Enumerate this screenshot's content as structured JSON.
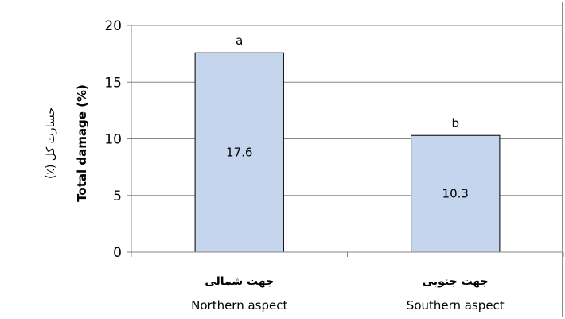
{
  "chart_data": {
    "type": "bar",
    "categories": [
      "Northern aspect",
      "Southern aspect"
    ],
    "categories_fa": [
      "جهت شمالی",
      "جهت جنوبی"
    ],
    "values": [
      17.6,
      10.3
    ],
    "data_labels": [
      "17.6",
      "10.3"
    ],
    "significance_letters": [
      "a",
      "b"
    ],
    "ylabel": "Total damage (%)",
    "ylabel_fa": "خسارت کل (٪)",
    "ylim": [
      0,
      20
    ],
    "yticks": [
      "0",
      "5",
      "10",
      "15",
      "20"
    ],
    "grid": true,
    "colors": {
      "bar_fill": "#c6d5ee",
      "bar_stroke": "#000000",
      "grid": "#868686",
      "axis": "#868686"
    }
  }
}
